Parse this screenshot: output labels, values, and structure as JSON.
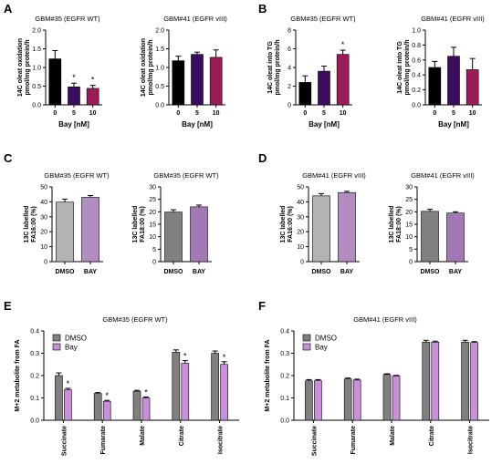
{
  "panel_letters": [
    "A",
    "B",
    "C",
    "D",
    "E",
    "F"
  ],
  "chart_data": [
    {
      "id": "A1",
      "panel": "A",
      "type": "bar",
      "title": "GBM#35 (EGFR WT)",
      "ylabel_line1": "14C oleat oxidation",
      "ylabel_line2": "pmol/mg protein/h",
      "xlabel": "Bay [nM]",
      "categories": [
        "0",
        "5",
        "10"
      ],
      "values": [
        1.23,
        0.48,
        0.44
      ],
      "errors": [
        0.22,
        0.1,
        0.08
      ],
      "colors": [
        "#000000",
        "#3b0b5e",
        "#9b1b57"
      ],
      "significance": [
        "",
        "*",
        "*"
      ],
      "ylim": [
        0,
        2.0
      ],
      "yticks": [
        "0.0",
        "0.5",
        "1.0",
        "1.5",
        "2.0"
      ]
    },
    {
      "id": "A2",
      "panel": "A",
      "type": "bar",
      "title": "GBM#41 (EGFR vIII)",
      "ylabel_line1": "14C oleat oxidation",
      "ylabel_line2": "pmol/mg protein/h",
      "xlabel": "Bay [nM]",
      "categories": [
        "0",
        "5",
        "10"
      ],
      "values": [
        1.18,
        1.35,
        1.27
      ],
      "errors": [
        0.12,
        0.06,
        0.2
      ],
      "colors": [
        "#000000",
        "#3b0b5e",
        "#9b1b57"
      ],
      "significance": [
        "",
        "",
        ""
      ],
      "ylim": [
        0,
        2.0
      ],
      "yticks": [
        "0.0",
        "0.5",
        "1.0",
        "1.5",
        "2.0"
      ]
    },
    {
      "id": "B1",
      "panel": "B",
      "type": "bar",
      "title": "GBM#35 (EGFR WT)",
      "ylabel_line1": "14C oleat into TG",
      "ylabel_line2": "pmol/mg protein/h",
      "xlabel": "Bay [nM]",
      "categories": [
        "0",
        "5",
        "10"
      ],
      "values": [
        2.4,
        3.6,
        5.4
      ],
      "errors": [
        0.7,
        0.55,
        0.45
      ],
      "colors": [
        "#000000",
        "#3b0b5e",
        "#9b1b57"
      ],
      "significance": [
        "",
        "",
        "*"
      ],
      "ylim": [
        0,
        8
      ],
      "yticks": [
        "0",
        "2",
        "4",
        "6",
        "8"
      ]
    },
    {
      "id": "B2",
      "panel": "B",
      "type": "bar",
      "title": "GBM#41 (EGFR vIII)",
      "ylabel_line1": "14C oleat into TG",
      "ylabel_line2": "pmol/mg protein/h",
      "xlabel": "Bay [nM]",
      "categories": [
        "0",
        "5",
        "10"
      ],
      "values": [
        0.5,
        0.65,
        0.47
      ],
      "errors": [
        0.08,
        0.12,
        0.15
      ],
      "colors": [
        "#000000",
        "#3b0b5e",
        "#9b1b57"
      ],
      "significance": [
        "",
        "",
        ""
      ],
      "ylim": [
        0,
        1.0
      ],
      "yticks": [
        "0.0",
        "0.2",
        "0.4",
        "0.6",
        "0.8",
        "1.0"
      ]
    },
    {
      "id": "C1",
      "panel": "C",
      "type": "bar",
      "title": "GBM#35 (EGFR WT)",
      "ylabel_line1": "13C labelled",
      "ylabel_line2": "FA16:00 (%)",
      "xlabel": "",
      "categories": [
        "DMSO",
        "BAY"
      ],
      "values": [
        39.8,
        43.0
      ],
      "errors": [
        2.0,
        1.2
      ],
      "colors": [
        "#b3b3b3",
        "#b28dc2"
      ],
      "significance": [
        "",
        ""
      ],
      "ylim": [
        0,
        50
      ],
      "yticks": [
        "0",
        "10",
        "20",
        "30",
        "40",
        "50"
      ]
    },
    {
      "id": "C2",
      "panel": "C",
      "type": "bar",
      "title": "GBM#35 (EGFR WT)",
      "ylabel_line1": "13C labelled",
      "ylabel_line2": "FA18:00 (%)",
      "xlabel": "",
      "categories": [
        "DMSO",
        "BAY"
      ],
      "values": [
        19.9,
        22.0
      ],
      "errors": [
        0.9,
        0.7
      ],
      "colors": [
        "#808080",
        "#a379b5"
      ],
      "significance": [
        "",
        ""
      ],
      "ylim": [
        0,
        30
      ],
      "yticks": [
        "0",
        "5",
        "10",
        "15",
        "20",
        "25",
        "30"
      ]
    },
    {
      "id": "D1",
      "panel": "D",
      "type": "bar",
      "title": "GBM#41 (EGFR vIII)",
      "ylabel_line1": "13C labelled",
      "ylabel_line2": "FA16:00 (%)",
      "xlabel": "",
      "categories": [
        "DMSO",
        "BAY"
      ],
      "values": [
        44.0,
        46.2
      ],
      "errors": [
        1.5,
        0.8
      ],
      "colors": [
        "#b3b3b3",
        "#b28dc2"
      ],
      "significance": [
        "",
        ""
      ],
      "ylim": [
        0,
        50
      ],
      "yticks": [
        "0",
        "10",
        "20",
        "30",
        "40",
        "50"
      ]
    },
    {
      "id": "D2",
      "panel": "D",
      "type": "bar",
      "title": "GBM#41 (EGFR vIII)",
      "ylabel_line1": "13C labelled",
      "ylabel_line2": "FA18:00 (%)",
      "xlabel": "",
      "categories": [
        "DMSO",
        "BAY"
      ],
      "values": [
        20.2,
        19.5
      ],
      "errors": [
        0.8,
        0.5
      ],
      "colors": [
        "#808080",
        "#a379b5"
      ],
      "significance": [
        "",
        ""
      ],
      "ylim": [
        0,
        30
      ],
      "yticks": [
        "0",
        "5",
        "10",
        "15",
        "20",
        "25",
        "30"
      ]
    },
    {
      "id": "E",
      "panel": "E",
      "type": "grouped-bar",
      "title": "GBM#35 (EGFR WT)",
      "ylabel": "M+2 metabolite from FA",
      "categories": [
        "Succinate",
        "Fumarate",
        "Malate",
        "Citrate",
        "Isocitrate"
      ],
      "series": [
        {
          "name": "DMSO",
          "color": "#808080",
          "values": [
            0.2,
            0.12,
            0.13,
            0.305,
            0.3
          ],
          "errors": [
            0.012,
            0.004,
            0.004,
            0.01,
            0.01
          ]
        },
        {
          "name": "Bay",
          "color": "#c98fd9",
          "values": [
            0.137,
            0.085,
            0.1,
            0.255,
            0.25
          ],
          "errors": [
            0.006,
            0.004,
            0.004,
            0.012,
            0.012
          ]
        }
      ],
      "significance": [
        "*",
        "*",
        "*",
        "*",
        "*"
      ],
      "ylim": [
        0,
        0.4
      ],
      "yticks": [
        "0.0",
        "0.1",
        "0.2",
        "0.3",
        "0.4"
      ],
      "legend_position": "top-left"
    },
    {
      "id": "F",
      "panel": "F",
      "type": "grouped-bar",
      "title": "GBM#41 (EGFR vIII)",
      "ylabel": "M+2 metabolite from FA",
      "categories": [
        "Succinate",
        "Fumarate",
        "Malate",
        "Citrate",
        "Isocitrate"
      ],
      "series": [
        {
          "name": "DMSO",
          "color": "#808080",
          "values": [
            0.177,
            0.185,
            0.205,
            0.35,
            0.35
          ],
          "errors": [
            0.005,
            0.004,
            0.003,
            0.008,
            0.008
          ]
        },
        {
          "name": "Bay",
          "color": "#c98fd9",
          "values": [
            0.177,
            0.18,
            0.198,
            0.35,
            0.348
          ],
          "errors": [
            0.005,
            0.004,
            0.003,
            0.004,
            0.004
          ]
        }
      ],
      "significance": [
        "",
        "",
        "",
        "",
        ""
      ],
      "ylim": [
        0,
        0.4
      ],
      "yticks": [
        "0.0",
        "0.1",
        "0.2",
        "0.3",
        "0.4"
      ],
      "legend_position": "top-left"
    }
  ]
}
